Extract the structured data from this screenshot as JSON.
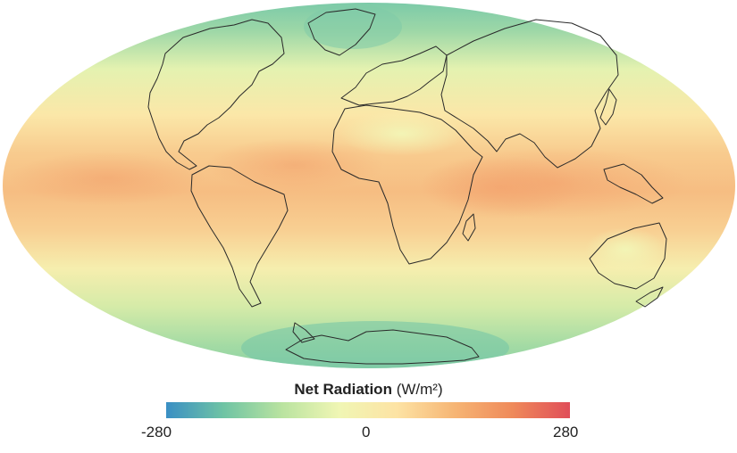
{
  "map": {
    "projection": "Mollweide",
    "layers": [
      "net-radiation-field",
      "coastlines"
    ]
  },
  "legend": {
    "title": "Net Radiation",
    "unit": "(W/m²)",
    "min_label": "-280",
    "mid_label": "0",
    "max_label": "280",
    "colors": [
      "#3a8fc4",
      "#6fc4a4",
      "#b9e3a0",
      "#f0f6b4",
      "#fde3a4",
      "#f6b574",
      "#ef8a5a",
      "#e04e59"
    ]
  }
}
